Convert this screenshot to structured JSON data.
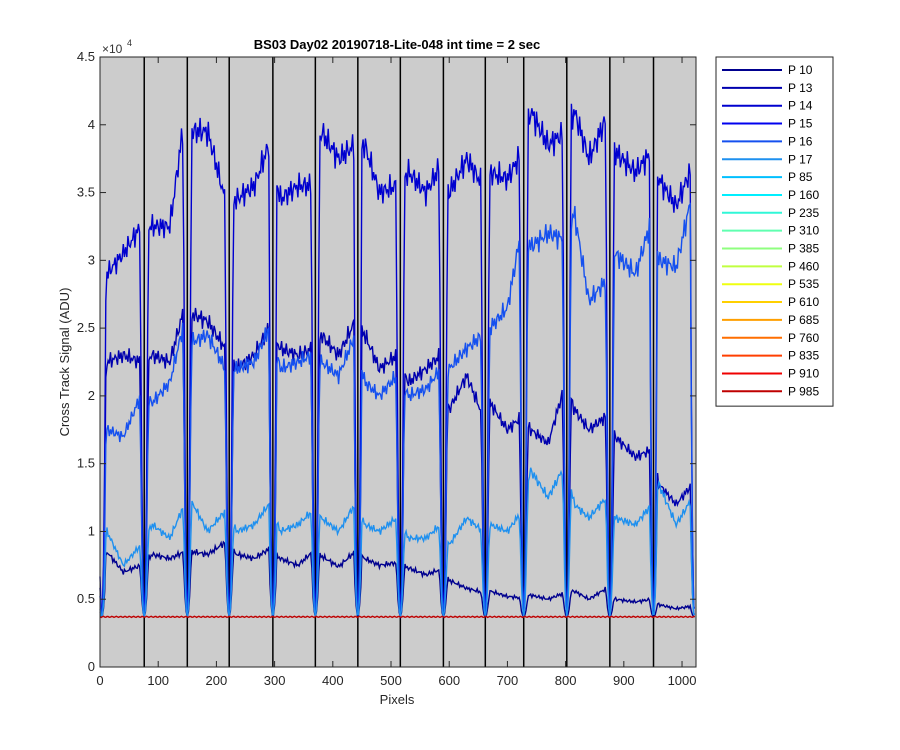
{
  "chart_data": {
    "type": "line",
    "title": "BS03 Day02 20190718-Lite-048 int time = 2 sec",
    "xlabel": "Pixels",
    "ylabel": "Cross Track Signal (ADU)",
    "y_exponent": "×10",
    "y_exponent_power": "4",
    "xlim": [
      0,
      1024
    ],
    "ylim": [
      0,
      45000
    ],
    "x_ticks": [
      0,
      100,
      200,
      300,
      400,
      500,
      600,
      700,
      800,
      900,
      1000
    ],
    "x_tick_labels": [
      "0",
      "100",
      "200",
      "300",
      "400",
      "500",
      "600",
      "700",
      "800",
      "900",
      "1000"
    ],
    "y_ticks": [
      0,
      5000,
      10000,
      15000,
      20000,
      25000,
      30000,
      35000,
      40000,
      45000
    ],
    "y_tick_labels": [
      "0",
      "0.5",
      "1",
      "1.5",
      "2",
      "2.5",
      "3",
      "3.5",
      "4",
      "4.5"
    ],
    "background_color": "#cccccc",
    "dividers_x": [
      76,
      150,
      222,
      297,
      370,
      443,
      516,
      590,
      662,
      728,
      802,
      876,
      951
    ],
    "dips_x": [
      3,
      76,
      150,
      222,
      297,
      370,
      443,
      516,
      590,
      662,
      728,
      802,
      876,
      951,
      1021
    ],
    "baseline": 3700,
    "legend_position": "outside-right",
    "series": [
      {
        "name": "P 10",
        "color": "#00008f",
        "plot": true,
        "x": [
          0,
          12,
          40,
          70,
          90,
          120,
          145,
          160,
          185,
          215,
          235,
          265,
          290,
          310,
          340,
          365,
          380,
          410,
          438,
          455,
          480,
          510,
          530,
          560,
          585,
          600,
          630,
          658,
          670,
          700,
          725,
          740,
          770,
          800,
          815,
          840,
          870,
          885,
          920,
          948,
          960,
          990,
          1018
        ],
        "y": [
          5500,
          8500,
          7000,
          7500,
          8300,
          8000,
          8500,
          8500,
          8300,
          9200,
          8300,
          8000,
          8700,
          8000,
          7500,
          8500,
          8200,
          7400,
          8500,
          8000,
          7500,
          7700,
          7300,
          6800,
          7200,
          6400,
          5800,
          5500,
          5600,
          5200,
          5100,
          5300,
          5000,
          5500,
          5600,
          5000,
          5800,
          5000,
          4800,
          5000,
          4600,
          4300,
          4500
        ]
      },
      {
        "name": "P 13",
        "color": "#0000ae",
        "plot": true,
        "x": [
          0,
          12,
          40,
          70,
          90,
          120,
          145,
          160,
          185,
          215,
          235,
          265,
          290,
          310,
          340,
          365,
          380,
          410,
          438,
          455,
          480,
          510,
          530,
          560,
          585,
          600,
          630,
          658,
          670,
          700,
          725,
          740,
          770,
          800,
          815,
          840,
          870,
          885,
          920,
          948,
          960,
          990,
          1018
        ],
        "y": [
          15000,
          22500,
          23000,
          22500,
          23000,
          22500,
          26500,
          26000,
          25500,
          23500,
          22000,
          23000,
          25000,
          23500,
          23000,
          23500,
          24500,
          23000,
          25500,
          24500,
          22000,
          23000,
          21000,
          22000,
          23000,
          19000,
          21500,
          18500,
          19500,
          17500,
          18500,
          17500,
          16500,
          21000,
          19000,
          17500,
          18500,
          17000,
          15500,
          16000,
          13500,
          12000,
          13500
        ]
      },
      {
        "name": "P 14",
        "color": "#0000cf",
        "plot": true,
        "x": [
          0,
          12,
          40,
          70,
          90,
          120,
          145,
          160,
          185,
          215,
          235,
          265,
          290,
          310,
          340,
          365,
          380,
          410,
          438,
          455,
          480,
          510,
          530,
          560,
          585,
          600,
          630,
          658,
          670,
          700,
          725,
          740,
          770,
          800,
          815,
          840,
          870,
          885,
          920,
          948,
          960,
          990,
          1018
        ],
        "y": [
          20000,
          29000,
          30500,
          32500,
          32500,
          32500,
          40500,
          39500,
          39500,
          34500,
          34500,
          35500,
          38500,
          34500,
          35500,
          35500,
          39500,
          37500,
          38500,
          38500,
          35000,
          35500,
          36500,
          35000,
          37000,
          35000,
          37500,
          35500,
          36500,
          36000,
          38000,
          41000,
          38500,
          39500,
          41000,
          37500,
          40500,
          38000,
          36500,
          38000,
          36000,
          34000,
          37000
        ]
      },
      {
        "name": "P 15",
        "color": "#0000ef",
        "plot": false,
        "x": [],
        "y": []
      },
      {
        "name": "P 16",
        "color": "#1550ef",
        "plot": true,
        "x": [
          0,
          12,
          40,
          70,
          90,
          120,
          145,
          160,
          185,
          215,
          235,
          265,
          290,
          310,
          340,
          365,
          380,
          410,
          438,
          455,
          480,
          510,
          530,
          560,
          585,
          600,
          630,
          658,
          670,
          700,
          725,
          740,
          770,
          800,
          815,
          840,
          870,
          885,
          920,
          948,
          960,
          990,
          1018
        ],
        "y": [
          12000,
          17500,
          17000,
          20000,
          19500,
          21000,
          25500,
          24000,
          24500,
          22000,
          22000,
          22500,
          25000,
          22000,
          22500,
          23000,
          22500,
          21500,
          24500,
          21000,
          20000,
          21500,
          20000,
          20500,
          22000,
          22000,
          23500,
          24500,
          25000,
          26500,
          32500,
          31000,
          32000,
          31500,
          33500,
          27000,
          28500,
          30500,
          29000,
          33000,
          30000,
          29500,
          35000
        ]
      },
      {
        "name": "P 17",
        "color": "#1e90ef",
        "plot": true,
        "x": [
          0,
          12,
          40,
          70,
          90,
          120,
          145,
          160,
          185,
          215,
          235,
          265,
          290,
          310,
          340,
          365,
          380,
          410,
          438,
          455,
          480,
          510,
          530,
          560,
          585,
          600,
          630,
          658,
          670,
          700,
          725,
          740,
          770,
          800,
          815,
          840,
          870,
          885,
          920,
          948,
          960,
          990,
          1018
        ],
        "y": [
          7000,
          10000,
          7500,
          9000,
          10500,
          9500,
          12000,
          12000,
          10000,
          11500,
          10000,
          10500,
          12000,
          10000,
          10500,
          11500,
          11000,
          10000,
          12000,
          10500,
          10000,
          11000,
          9500,
          9500,
          10500,
          9000,
          11000,
          10000,
          10500,
          10000,
          11500,
          14500,
          12500,
          15000,
          12000,
          11000,
          12500,
          11000,
          10500,
          12000,
          13500,
          10500,
          12500
        ]
      },
      {
        "name": "P 85",
        "color": "#00bfff",
        "plot": false,
        "x": [],
        "y": []
      },
      {
        "name": "P 160",
        "color": "#00efff",
        "plot": false,
        "x": [],
        "y": []
      },
      {
        "name": "P 235",
        "color": "#30f7d7",
        "plot": false,
        "x": [],
        "y": []
      },
      {
        "name": "P 310",
        "color": "#60ffb0",
        "plot": false,
        "x": [],
        "y": []
      },
      {
        "name": "P 385",
        "color": "#8fff7f",
        "plot": false,
        "x": [],
        "y": []
      },
      {
        "name": "P 460",
        "color": "#c0ff40",
        "plot": false,
        "x": [],
        "y": []
      },
      {
        "name": "P 535",
        "color": "#efff10",
        "plot": false,
        "x": [],
        "y": []
      },
      {
        "name": "P 610",
        "color": "#ffd000",
        "plot": false,
        "x": [],
        "y": []
      },
      {
        "name": "P 685",
        "color": "#ff9f00",
        "plot": false,
        "x": [],
        "y": []
      },
      {
        "name": "P 760",
        "color": "#ff6f00",
        "plot": false,
        "x": [],
        "y": []
      },
      {
        "name": "P 835",
        "color": "#ff3f00",
        "plot": false,
        "x": [],
        "y": []
      },
      {
        "name": "P 910",
        "color": "#ef0000",
        "plot": false,
        "x": [],
        "y": []
      },
      {
        "name": "P 985",
        "color": "#bf0000",
        "plot": true,
        "x": [
          0,
          1024
        ],
        "y": [
          3700,
          3700
        ]
      }
    ]
  }
}
